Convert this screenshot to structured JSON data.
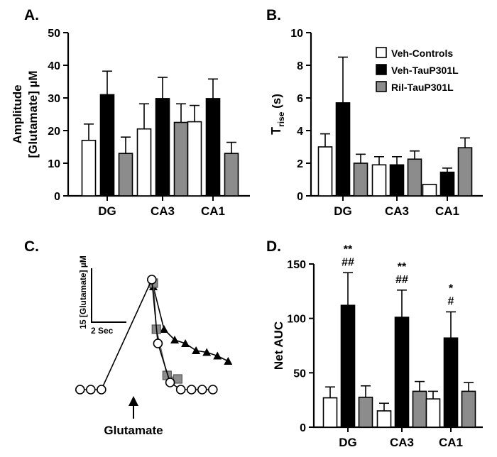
{
  "colors": {
    "veh_controls": "#ffffff",
    "veh_taup301l": "#000000",
    "ril_taup301l": "#8c8c8c",
    "axis": "#000000"
  },
  "legend": [
    {
      "name": "Veh-Controls",
      "color": "#ffffff"
    },
    {
      "name": "Veh-TauP301L",
      "color": "#000000"
    },
    {
      "name": "Ril-TauP301L",
      "color": "#8c8c8c"
    }
  ],
  "chart_data": [
    {
      "panel": "A.",
      "type": "bar",
      "ylabel_line1": "Amplitude",
      "ylabel_line2": "[Glutamate] µM",
      "ylim": [
        0,
        50
      ],
      "yticks": [
        "0",
        "10",
        "20",
        "30",
        "40",
        "50"
      ],
      "categories": [
        "DG",
        "CA3",
        "CA1"
      ],
      "series": [
        {
          "name": "Veh-Controls",
          "values": [
            17,
            20.5,
            22.7
          ],
          "errors": [
            5,
            7.7,
            5
          ]
        },
        {
          "name": "Veh-TauP301L",
          "values": [
            31,
            29.8,
            29.8
          ],
          "errors": [
            7.2,
            6.5,
            6
          ]
        },
        {
          "name": "Ril-TauP301L",
          "values": [
            13,
            22.5,
            13
          ],
          "errors": [
            5,
            5.7,
            3.4
          ]
        }
      ]
    },
    {
      "panel": "B.",
      "type": "bar",
      "ylabel_main": "T",
      "ylabel_sub": "rise",
      "ylabel_unit": " (s)",
      "ylim": [
        0,
        10
      ],
      "yticks": [
        "0",
        "2",
        "4",
        "6",
        "8",
        "10"
      ],
      "categories": [
        "DG",
        "CA3",
        "CA1"
      ],
      "series": [
        {
          "name": "Veh-Controls",
          "values": [
            3,
            1.9,
            0.7
          ],
          "errors": [
            0.8,
            0.5,
            0
          ]
        },
        {
          "name": "Veh-TauP301L",
          "values": [
            5.7,
            1.9,
            1.45
          ],
          "errors": [
            2.8,
            0.5,
            0.25
          ]
        },
        {
          "name": "Ril-TauP301L",
          "values": [
            2,
            2.25,
            2.95
          ],
          "errors": [
            0.55,
            0.5,
            0.6
          ]
        }
      ]
    },
    {
      "panel": "C.",
      "type": "line",
      "scale_y_label": "15 [Glutamate] µM",
      "scale_x_label": "2 Sec",
      "stimulus_label": "Glutamate",
      "series": [
        {
          "name": "Veh-TauP301L",
          "marker": "triangle",
          "x": [
            1.3,
            2.0,
            2.7,
            3.4,
            4.1,
            4.8,
            5.5,
            6.2
          ],
          "y": [
            35,
            23,
            20,
            19,
            17,
            16.5,
            15.5,
            14
          ]
        },
        {
          "name": "Ril-TauP301L",
          "marker": "square",
          "x": [
            1.3,
            1.5,
            2.2,
            2.9
          ],
          "y": [
            36,
            23,
            10,
            9
          ]
        },
        {
          "name": "Veh-Controls",
          "marker": "circle",
          "x": [
            -3.5,
            -2.8,
            -2.1,
            1.2,
            1.6,
            2.4,
            3.1,
            3.8,
            4.5,
            5.2
          ],
          "y": [
            6,
            6,
            6,
            37,
            19,
            8,
            6,
            6,
            6,
            6
          ]
        }
      ]
    },
    {
      "panel": "D.",
      "type": "bar",
      "ylabel": "Net AUC",
      "ylim": [
        0,
        150
      ],
      "yticks": [
        "0",
        "50",
        "100",
        "150"
      ],
      "categories": [
        "DG",
        "CA3",
        "CA1"
      ],
      "series": [
        {
          "name": "Veh-Controls",
          "values": [
            27,
            15,
            26
          ],
          "errors": [
            10,
            7,
            7
          ]
        },
        {
          "name": "Veh-TauP301L",
          "values": [
            112,
            101,
            82
          ],
          "errors": [
            30,
            25,
            24
          ]
        },
        {
          "name": "Ril-TauP301L",
          "values": [
            27.5,
            33,
            33
          ],
          "errors": [
            10.5,
            9,
            8
          ]
        }
      ],
      "annotations": [
        {
          "category": "DG",
          "lines": [
            "**",
            "##"
          ]
        },
        {
          "category": "CA3",
          "lines": [
            "**",
            "##"
          ]
        },
        {
          "category": "CA1",
          "lines": [
            "*",
            "#"
          ]
        }
      ]
    }
  ]
}
